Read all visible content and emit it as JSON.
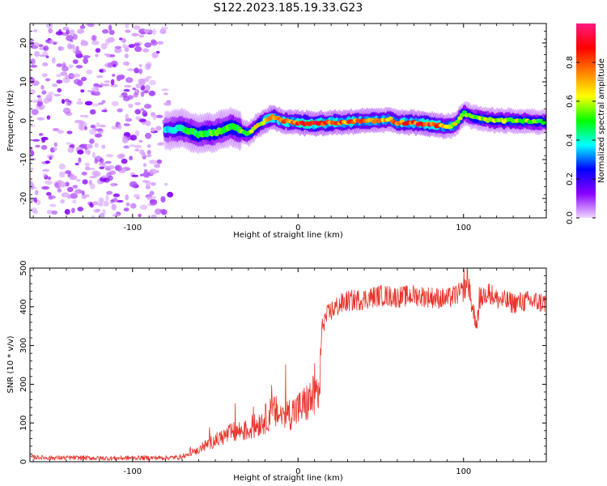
{
  "title": "S122.2023.185.19.33.G23",
  "chart_data": [
    {
      "type": "heatmap",
      "xlabel": "Height of straight line (km)",
      "ylabel": "Frequency (Hz)",
      "xlim": [
        -162,
        150
      ],
      "ylim": [
        -25,
        25
      ],
      "x_ticks": [
        -100,
        0,
        100
      ],
      "y_ticks": [
        20,
        10,
        0,
        -10,
        -20
      ],
      "x_tick_labels": [
        "-100",
        "0",
        "100"
      ],
      "y_tick_labels": [
        "20",
        "10",
        "0",
        "-10",
        "-20"
      ],
      "colorbar": {
        "label": "Normalized spectral amplitude",
        "range": [
          0,
          1
        ],
        "ticks": [
          0.0,
          0.2,
          0.4,
          0.6,
          0.8
        ],
        "tick_labels": [
          "0.0",
          "0.2",
          "0.4",
          "0.6",
          "0.8"
        ],
        "colors": [
          "#f0d8ff",
          "#8b00ff",
          "#0000ff",
          "#00ffff",
          "#00ff00",
          "#ffff00",
          "#ff8000",
          "#ff0000",
          "#ff1a80"
        ]
      },
      "ridge": {
        "x": [
          -80,
          -70,
          -60,
          -50,
          -40,
          -35,
          -30,
          -25,
          -20,
          -15,
          -10,
          0,
          10,
          20,
          30,
          40,
          50,
          55,
          60,
          70,
          80,
          90,
          95,
          100,
          105,
          110,
          120,
          130,
          140,
          150
        ],
        "y": [
          -2.5,
          -2.0,
          -3.5,
          -3.0,
          -1.5,
          -2.5,
          -3.5,
          -1.5,
          0.0,
          1.0,
          0.0,
          -0.5,
          -0.8,
          -0.5,
          -0.3,
          0.0,
          0.0,
          0.5,
          -0.5,
          -0.5,
          -1.0,
          -1.5,
          -1.0,
          2.0,
          1.0,
          0.5,
          0.0,
          0.0,
          -0.2,
          -0.3
        ],
        "amplitude": [
          0.35,
          0.45,
          0.5,
          0.5,
          0.5,
          0.5,
          0.55,
          0.6,
          0.7,
          0.75,
          0.75,
          0.8,
          0.85,
          0.8,
          0.75,
          0.75,
          0.7,
          0.7,
          0.75,
          0.8,
          0.85,
          0.7,
          0.6,
          0.55,
          0.55,
          0.55,
          0.6,
          0.6,
          0.55,
          0.5
        ]
      },
      "noise_region_x": [
        -162,
        -75
      ]
    },
    {
      "type": "line",
      "xlabel": "Height of straight line (km)",
      "ylabel": "SNR (10 * v/v)",
      "xlim": [
        -162,
        150
      ],
      "ylim": [
        0,
        500
      ],
      "x_ticks": [
        -100,
        0,
        100
      ],
      "y_ticks": [
        0,
        100,
        200,
        300,
        400,
        500
      ],
      "x_tick_labels": [
        "-100",
        "0",
        "100"
      ],
      "y_tick_labels": [
        "0",
        "100",
        "200",
        "300",
        "400",
        "500"
      ],
      "series": [
        {
          "color": "#e8342c",
          "x": [
            -162,
            -150,
            -140,
            -130,
            -120,
            -110,
            -100,
            -90,
            -80,
            -70,
            -65,
            -60,
            -55,
            -50,
            -45,
            -40,
            -35,
            -30,
            -25,
            -20,
            -15,
            -10,
            -5,
            0,
            5,
            10,
            13,
            14,
            15,
            20,
            25,
            30,
            40,
            50,
            60,
            70,
            80,
            90,
            95,
            100,
            103,
            105,
            108,
            110,
            115,
            120,
            130,
            140,
            150
          ],
          "y": [
            12,
            10,
            10,
            10,
            9,
            9,
            10,
            10,
            10,
            12,
            20,
            30,
            45,
            55,
            65,
            75,
            80,
            80,
            95,
            110,
            130,
            120,
            125,
            135,
            150,
            170,
            185,
            310,
            360,
            390,
            405,
            415,
            420,
            430,
            425,
            430,
            425,
            420,
            430,
            440,
            460,
            400,
            360,
            420,
            440,
            420,
            410,
            415,
            410
          ]
        }
      ]
    }
  ]
}
